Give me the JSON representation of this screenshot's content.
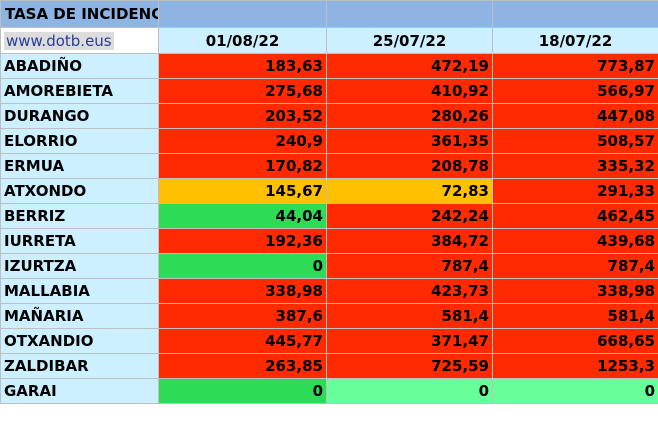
{
  "title": "TASA DE INCIDENCIA",
  "site": "www.dotb.eus",
  "dates": [
    "01/08/22",
    "25/07/22",
    "18/07/22"
  ],
  "colors": {
    "high": "#ff2a00",
    "medium": "#ffc000",
    "low": "#2edb57",
    "zero": "#66ff99",
    "header": "#8db4e2",
    "name_bg": "#ccf0ff"
  },
  "rows": [
    {
      "name": "ABADIÑO",
      "values": [
        "183,63",
        "472,19",
        "773,87"
      ],
      "levels": [
        "red",
        "red",
        "red"
      ]
    },
    {
      "name": "AMOREBIETA",
      "values": [
        "275,68",
        "410,92",
        "566,97"
      ],
      "levels": [
        "red",
        "red",
        "red"
      ]
    },
    {
      "name": "DURANGO",
      "values": [
        "203,52",
        "280,26",
        "447,08"
      ],
      "levels": [
        "red",
        "red",
        "red"
      ]
    },
    {
      "name": "ELORRIO",
      "values": [
        "240,9",
        "361,35",
        "508,57"
      ],
      "levels": [
        "red",
        "red",
        "red"
      ]
    },
    {
      "name": "ERMUA",
      "values": [
        "170,82",
        "208,78",
        "335,32"
      ],
      "levels": [
        "red",
        "red",
        "red"
      ]
    },
    {
      "name": "ATXONDO",
      "values": [
        "145,67",
        "72,83",
        "291,33"
      ],
      "levels": [
        "orange",
        "orange",
        "red"
      ]
    },
    {
      "name": "BERRIZ",
      "values": [
        "44,04",
        "242,24",
        "462,45"
      ],
      "levels": [
        "green",
        "red",
        "red"
      ]
    },
    {
      "name": "IURRETA",
      "values": [
        "192,36",
        "384,72",
        "439,68"
      ],
      "levels": [
        "red",
        "red",
        "red"
      ]
    },
    {
      "name": "IZURTZA",
      "values": [
        "0",
        "787,4",
        "787,4"
      ],
      "levels": [
        "green",
        "red",
        "red"
      ]
    },
    {
      "name": "MALLABIA",
      "values": [
        "338,98",
        "423,73",
        "338,98"
      ],
      "levels": [
        "red",
        "red",
        "red"
      ]
    },
    {
      "name": "MAÑARIA",
      "values": [
        "387,6",
        "581,4",
        "581,4"
      ],
      "levels": [
        "red",
        "red",
        "red"
      ]
    },
    {
      "name": "OTXANDIO",
      "values": [
        "445,77",
        "371,47",
        "668,65"
      ],
      "levels": [
        "red",
        "red",
        "red"
      ]
    },
    {
      "name": "ZALDIBAR",
      "values": [
        "263,85",
        "725,59",
        "1253,3"
      ],
      "levels": [
        "red",
        "red",
        "red"
      ]
    },
    {
      "name": "GARAI",
      "values": [
        "0",
        "0",
        "0"
      ],
      "levels": [
        "green",
        "lightgreen",
        "lightgreen"
      ]
    }
  ]
}
